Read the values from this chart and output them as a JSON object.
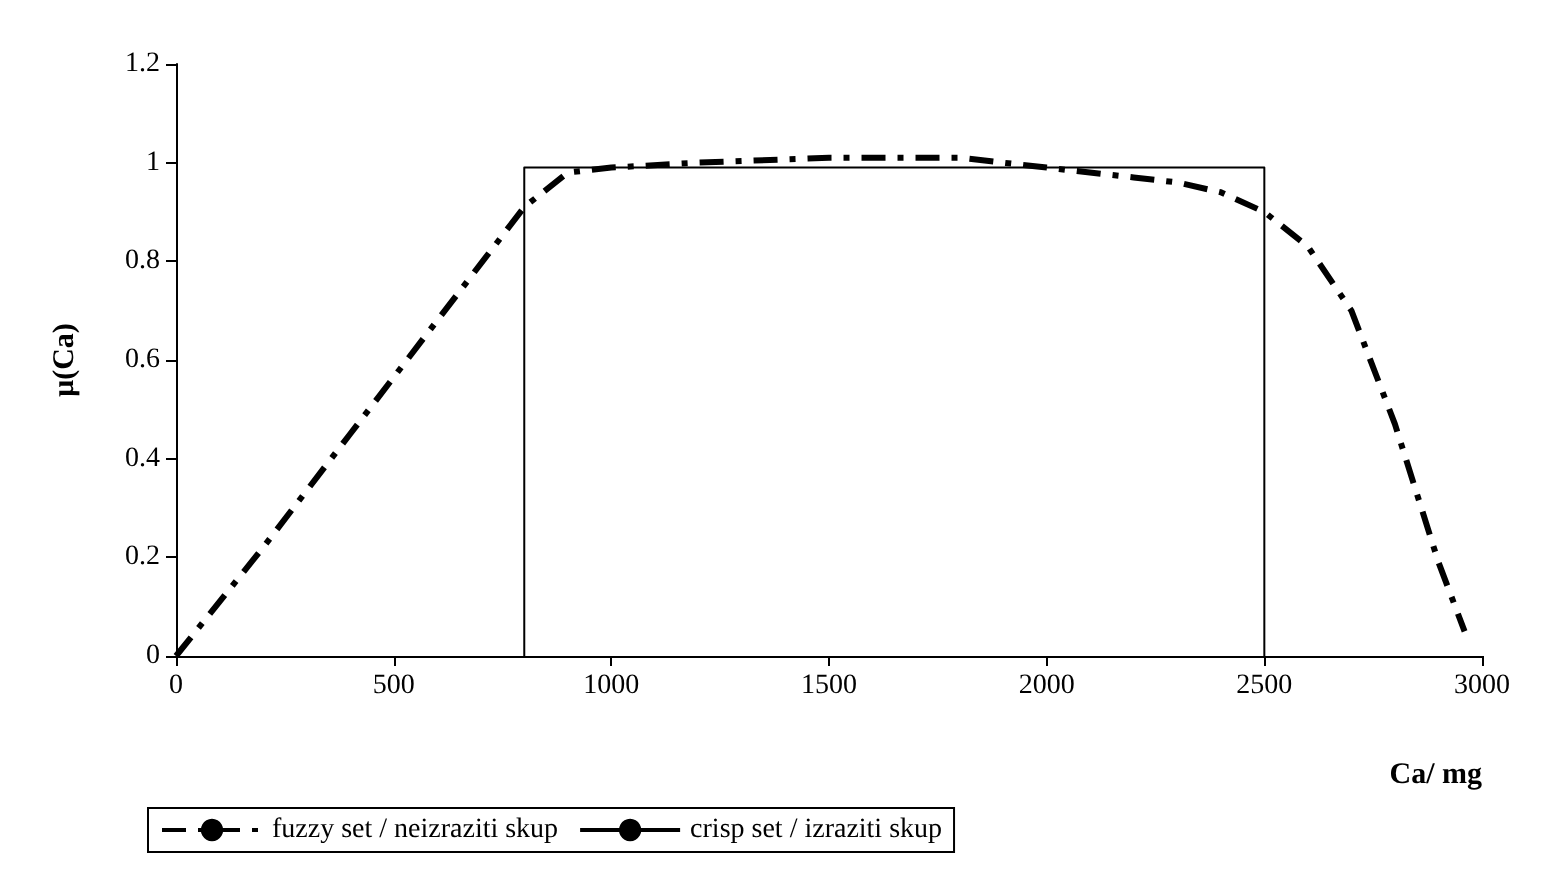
{
  "chart_data": {
    "type": "line",
    "xlabel": "Ca/ mg",
    "ylabel": "μ(Ca)",
    "xlim": [
      0,
      3000
    ],
    "xticks": [
      0,
      500,
      1000,
      1500,
      2000,
      2500,
      3000
    ],
    "ylim": [
      0,
      1.2
    ],
    "yticks": [
      0,
      0.2,
      0.4,
      0.6,
      0.8,
      1,
      1.2
    ],
    "grid": false,
    "legend": "bottom",
    "marker": "none",
    "series": [
      {
        "name": "fuzzy set / neizraziti skup",
        "color": "#000000",
        "line_style": "dashed",
        "x": [
          0,
          200,
          400,
          600,
          800,
          900,
          1000,
          1200,
          1500,
          1800,
          2000,
          2200,
          2300,
          2400,
          2500,
          2600,
          2700,
          2800,
          2900,
          2960
        ],
        "values": [
          0,
          0.22,
          0.45,
          0.68,
          0.91,
          0.98,
          0.99,
          1.0,
          1.01,
          1.01,
          0.99,
          0.97,
          0.96,
          0.94,
          0.9,
          0.83,
          0.7,
          0.47,
          0.19,
          0.05
        ]
      },
      {
        "name": "crisp set / izraziti skup",
        "color": "#000000",
        "line_style": "solid",
        "x": [
          800,
          800,
          2500,
          2500
        ],
        "values": [
          0,
          0.99,
          0.99,
          0
        ]
      }
    ]
  }
}
